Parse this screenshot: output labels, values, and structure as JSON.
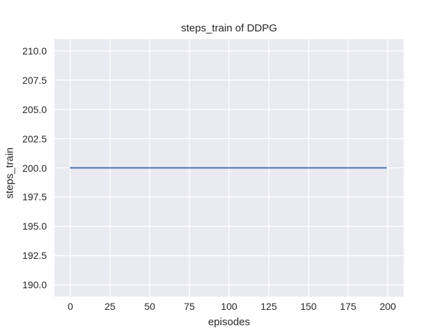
{
  "chart_data": {
    "type": "line",
    "title": "steps_train of DDPG",
    "xlabel": "episodes",
    "ylabel": "steps_train",
    "xlim": [
      -10,
      210
    ],
    "ylim": [
      189.0,
      211.0
    ],
    "xticks": [
      0,
      25,
      50,
      75,
      100,
      125,
      150,
      175,
      200
    ],
    "xtick_labels": [
      "0",
      "25",
      "50",
      "75",
      "100",
      "125",
      "150",
      "175",
      "200"
    ],
    "yticks": [
      190.0,
      192.5,
      195.0,
      197.5,
      200.0,
      202.5,
      205.0,
      207.5,
      210.0
    ],
    "ytick_labels": [
      "190.0",
      "192.5",
      "195.0",
      "197.5",
      "200.0",
      "202.5",
      "205.0",
      "207.5",
      "210.0"
    ],
    "grid": true,
    "legend": null,
    "series": [
      {
        "name": "steps_train",
        "color": "#4c72b0",
        "x": [
          0,
          199
        ],
        "y": [
          200,
          200
        ]
      }
    ],
    "style": {
      "axes_background": "#eaeaf2",
      "grid_color": "#ffffff",
      "text_color": "#262626",
      "figure_background": "#ffffff"
    }
  }
}
